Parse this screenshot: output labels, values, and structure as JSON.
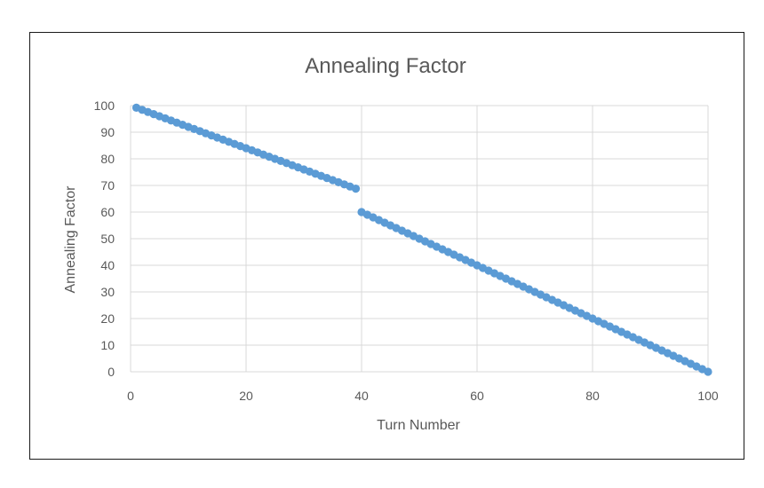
{
  "chart_data": {
    "type": "scatter",
    "title": "Annealing Factor",
    "xlabel": "Turn Number",
    "ylabel": "Annealing Factor",
    "xlim": [
      0,
      100
    ],
    "ylim": [
      0,
      100
    ],
    "x_ticks": [
      0,
      20,
      40,
      60,
      80,
      100
    ],
    "y_ticks": [
      0,
      10,
      20,
      30,
      40,
      50,
      60,
      70,
      80,
      90,
      100
    ],
    "grid": true,
    "marker_color": "#5B9BD5",
    "series": [
      {
        "segments": [
          {
            "x_start": 1,
            "x_end": 39,
            "y_start": 99.2,
            "y_end": 68.8
          },
          {
            "x_start": 40,
            "x_end": 100,
            "y_start": 60,
            "y_end": 0
          }
        ]
      }
    ]
  }
}
